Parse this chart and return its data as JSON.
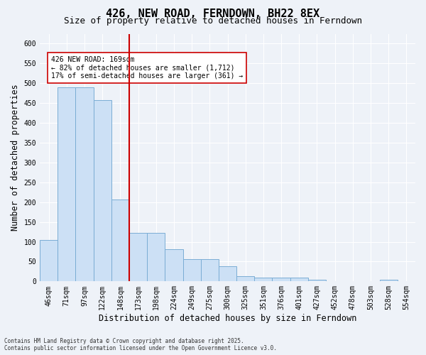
{
  "title": "426, NEW ROAD, FERNDOWN, BH22 8EX",
  "subtitle": "Size of property relative to detached houses in Ferndown",
  "xlabel": "Distribution of detached houses by size in Ferndown",
  "ylabel": "Number of detached properties",
  "categories": [
    "46sqm",
    "71sqm",
    "97sqm",
    "122sqm",
    "148sqm",
    "173sqm",
    "198sqm",
    "224sqm",
    "249sqm",
    "275sqm",
    "300sqm",
    "325sqm",
    "351sqm",
    "376sqm",
    "401sqm",
    "427sqm",
    "452sqm",
    "478sqm",
    "503sqm",
    "528sqm",
    "554sqm"
  ],
  "values": [
    105,
    490,
    490,
    458,
    207,
    122,
    122,
    82,
    57,
    57,
    38,
    13,
    10,
    10,
    10,
    5,
    0,
    0,
    0,
    5,
    0
  ],
  "bar_color": "#cce0f5",
  "bar_edge_color": "#7aadd4",
  "vline_color": "#cc0000",
  "annotation_text": "426 NEW ROAD: 169sqm\n← 82% of detached houses are smaller (1,712)\n17% of semi-detached houses are larger (361) →",
  "annotation_box_color": "white",
  "annotation_box_edge": "#cc0000",
  "footer_line1": "Contains HM Land Registry data © Crown copyright and database right 2025.",
  "footer_line2": "Contains public sector information licensed under the Open Government Licence v3.0.",
  "ylim": [
    0,
    625
  ],
  "yticks": [
    0,
    50,
    100,
    150,
    200,
    250,
    300,
    350,
    400,
    450,
    500,
    550,
    600
  ],
  "bg_color": "#eef2f8",
  "plot_bg_color": "#eef2f8",
  "title_fontsize": 11,
  "subtitle_fontsize": 9,
  "tick_fontsize": 7,
  "label_fontsize": 8.5,
  "footer_fontsize": 5.5
}
